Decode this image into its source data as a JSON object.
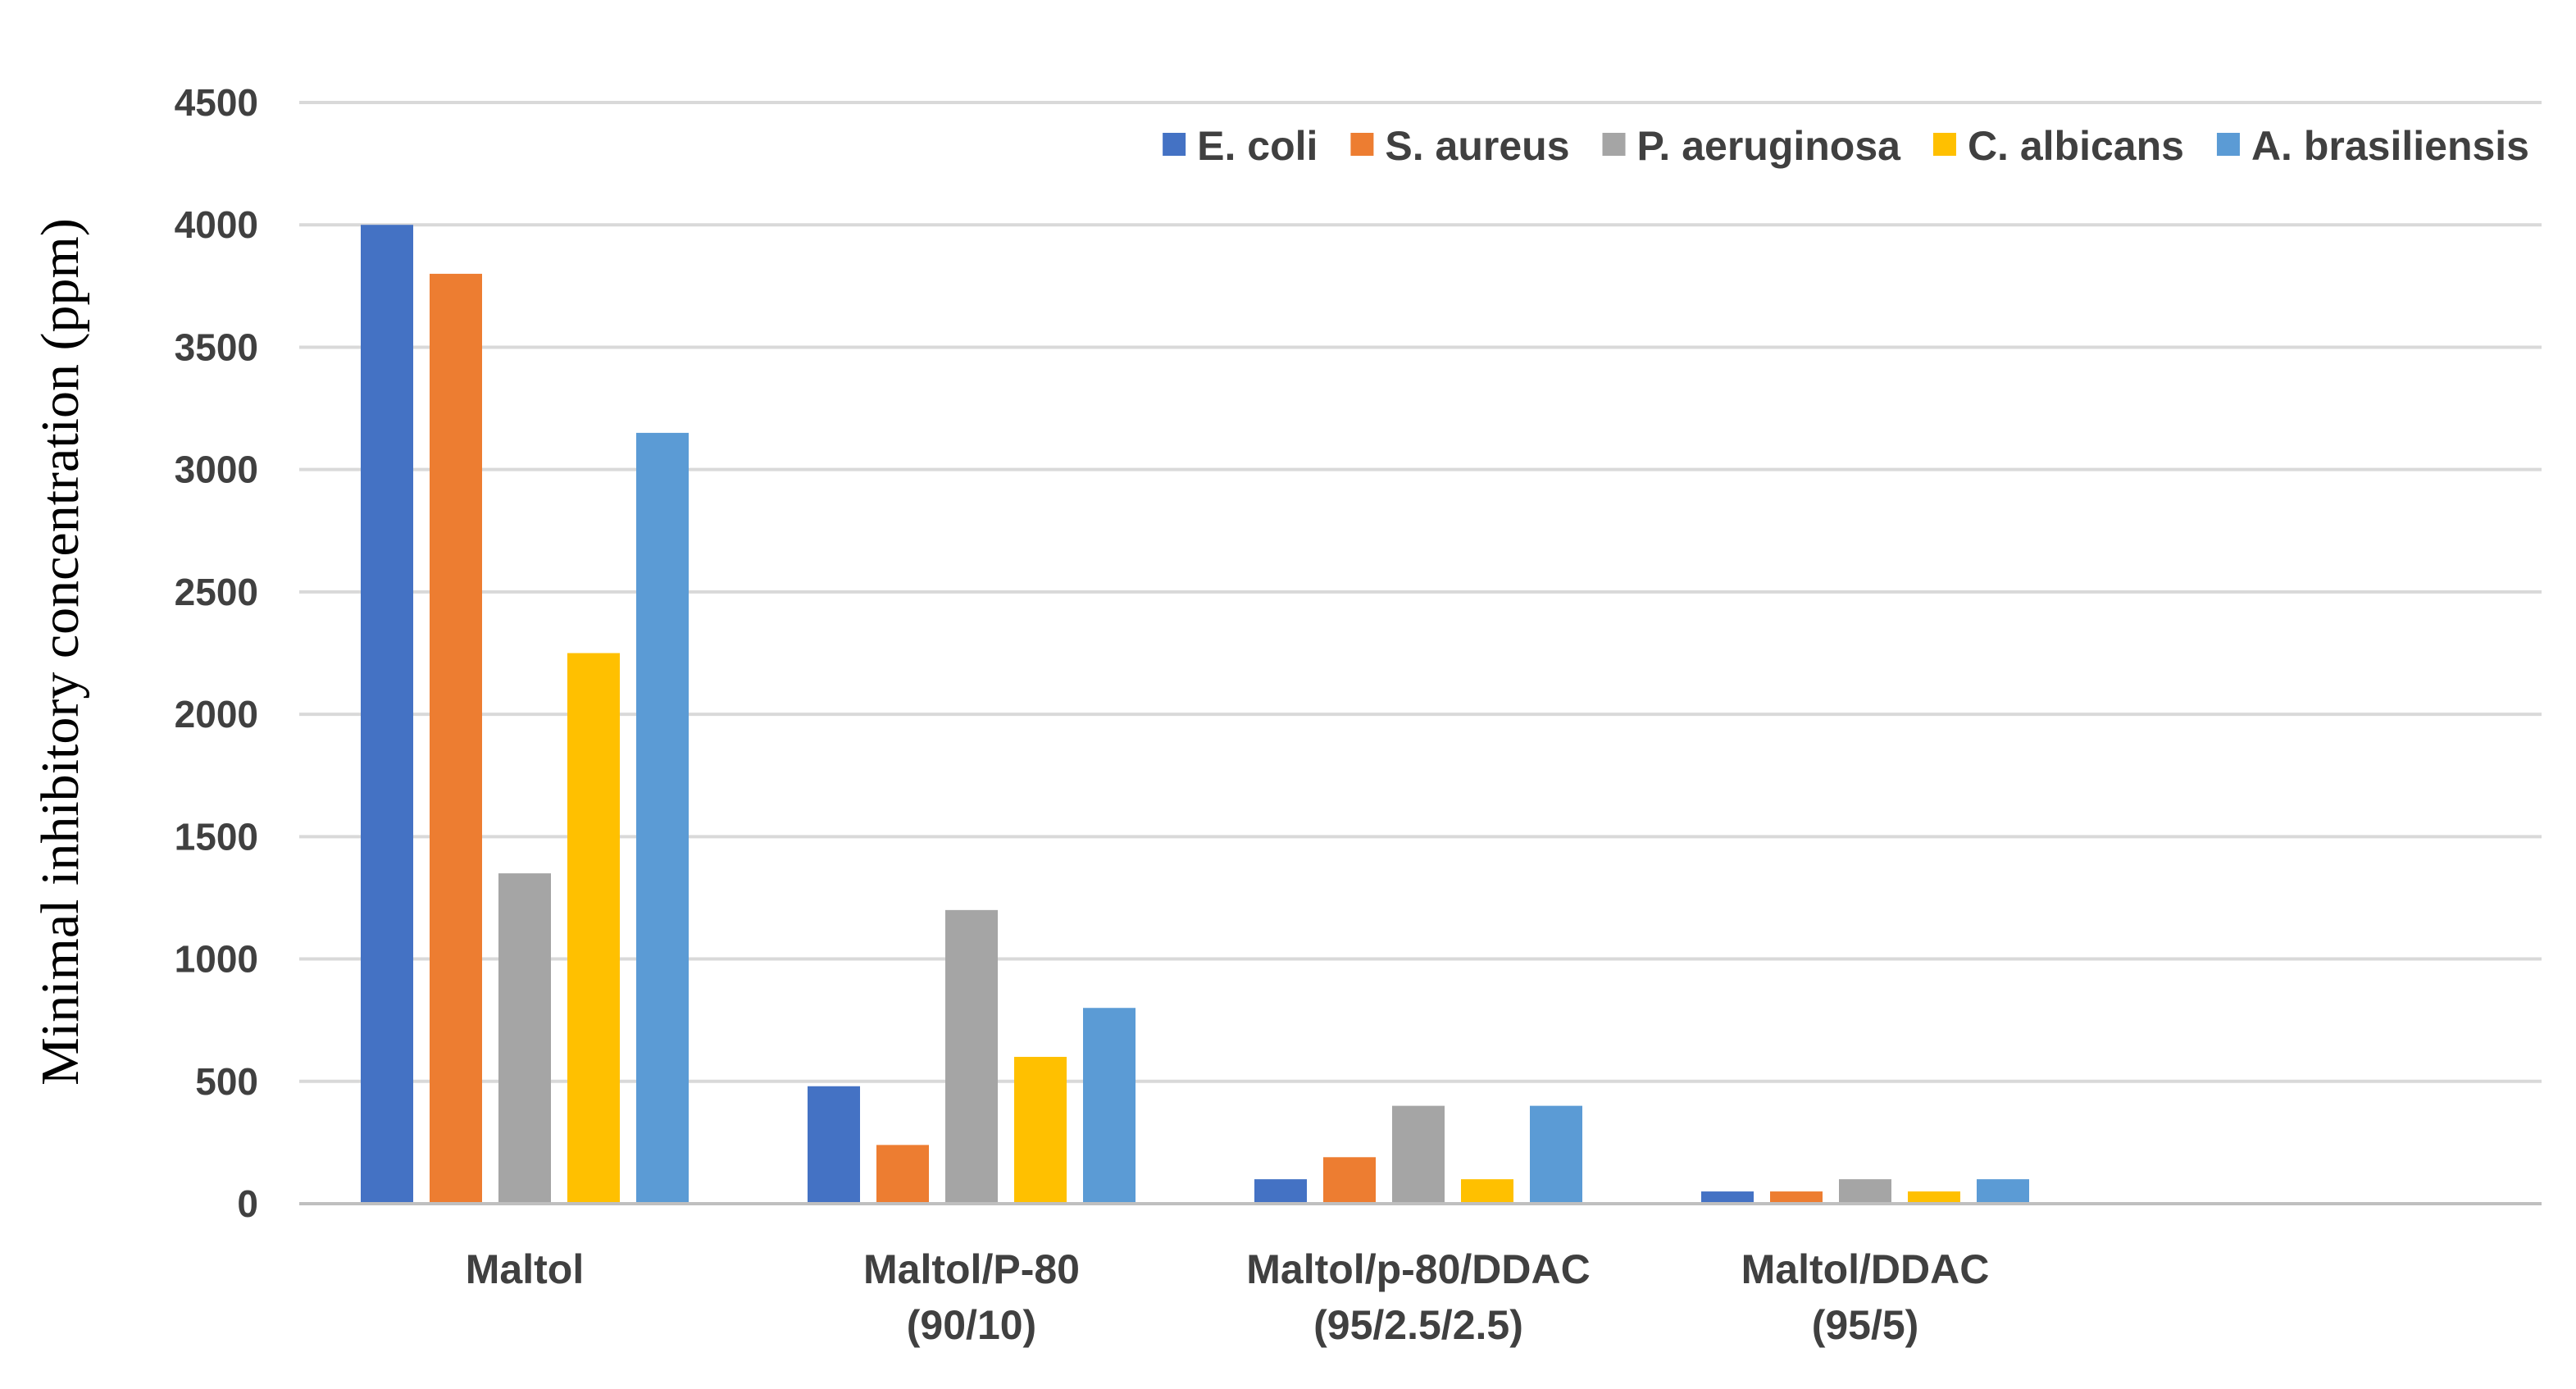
{
  "chart_data": {
    "type": "bar",
    "title": "",
    "xlabel": "",
    "ylabel": "Minimal inhibitory concentration (ppm)",
    "ylim": [
      0,
      4500
    ],
    "yticks": [
      0,
      500,
      1000,
      1500,
      2000,
      2500,
      3000,
      3500,
      4000,
      4500
    ],
    "grid": true,
    "legend_position": "top-right",
    "categories": [
      [
        "Maltol"
      ],
      [
        "Maltol/P-80",
        "(90/10)"
      ],
      [
        "Maltol/p-80/DDAC",
        "(95/2.5/2.5)"
      ],
      [
        "Maltol/DDAC",
        "(95/5)"
      ]
    ],
    "series": [
      {
        "name": "E. coli",
        "color": "#4472c4",
        "values": [
          4000,
          480,
          100,
          50
        ]
      },
      {
        "name": "S. aureus",
        "color": "#ed7d31",
        "values": [
          3800,
          240,
          190,
          50
        ]
      },
      {
        "name": "P. aeruginosa",
        "color": "#a5a5a5",
        "values": [
          1350,
          1200,
          400,
          100
        ]
      },
      {
        "name": "C. albicans",
        "color": "#ffc000",
        "values": [
          2250,
          600,
          100,
          50
        ]
      },
      {
        "name": "A. brasiliensis",
        "color": "#5b9bd5",
        "values": [
          3150,
          800,
          400,
          100
        ]
      }
    ]
  }
}
